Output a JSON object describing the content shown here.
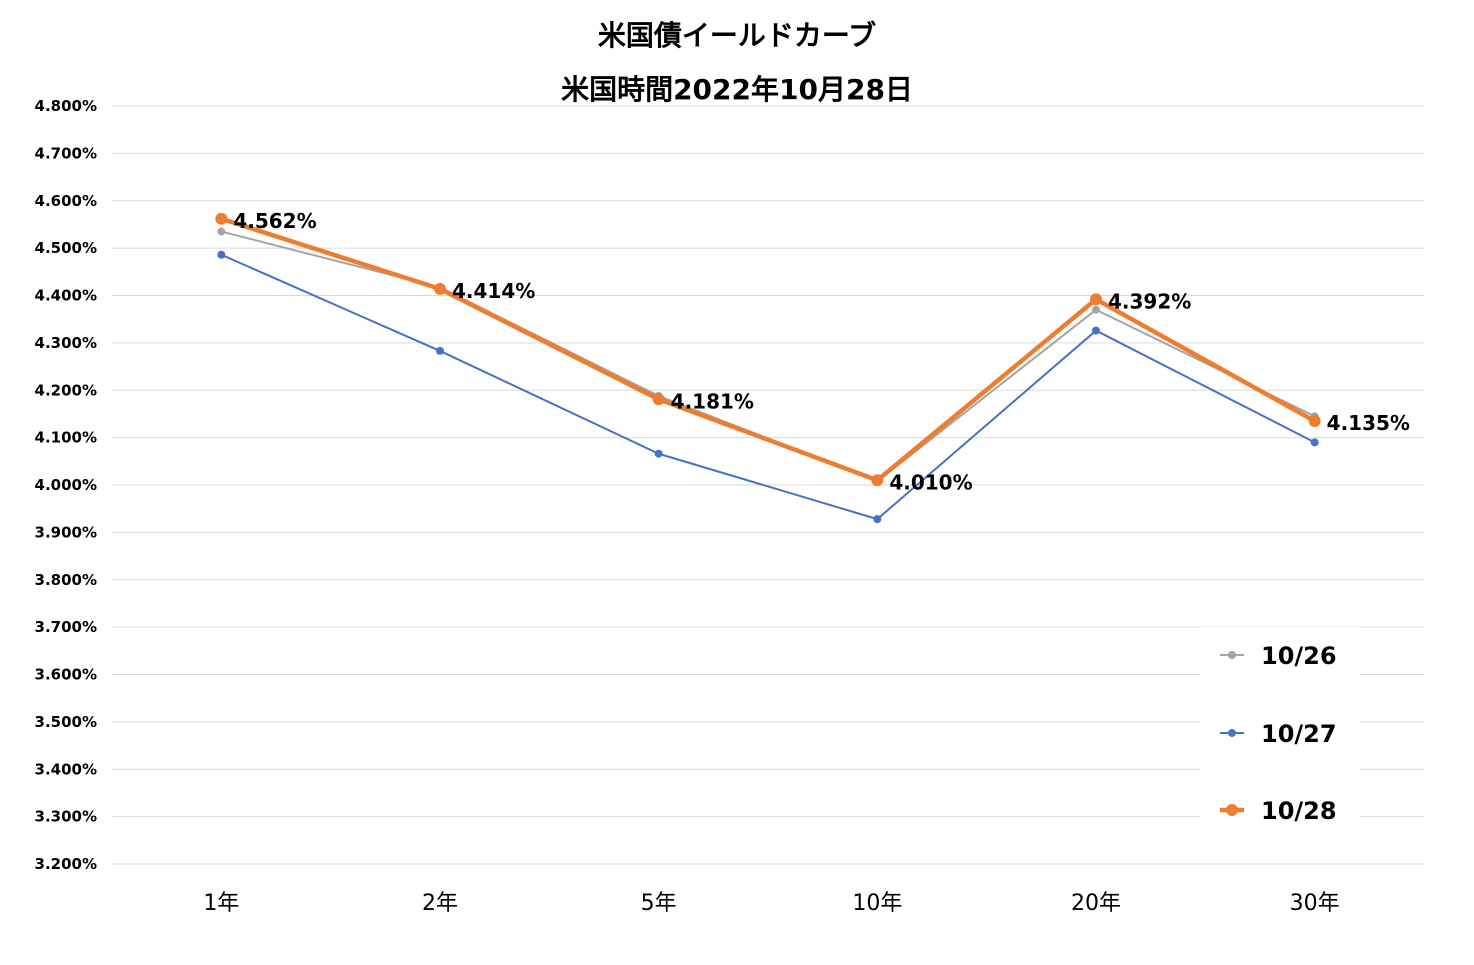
{
  "chart_data": {
    "type": "line",
    "title": "米国債イールドカーブ",
    "subtitle": "米国時間2022年10月28日",
    "categories": [
      "1年",
      "2年",
      "5年",
      "10年",
      "20年",
      "30年"
    ],
    "yticks": [
      "3.200%",
      "3.300%",
      "3.400%",
      "3.500%",
      "3.600%",
      "3.700%",
      "3.800%",
      "3.900%",
      "4.000%",
      "4.100%",
      "4.200%",
      "4.300%",
      "4.400%",
      "4.500%",
      "4.600%",
      "4.700%",
      "4.800%"
    ],
    "ylim": [
      3.2,
      4.8
    ],
    "grid": true,
    "legend_position": "bottom-right",
    "series": [
      {
        "name": "10/26",
        "color": "#A5A5A5",
        "values": [
          4.535,
          4.417,
          4.188,
          4.008,
          4.37,
          4.145
        ]
      },
      {
        "name": "10/27",
        "color": "#4472C4",
        "values": [
          4.486,
          4.283,
          4.066,
          3.928,
          4.326,
          4.09
        ]
      },
      {
        "name": "10/28",
        "color": "#ED7D31",
        "values": [
          4.562,
          4.414,
          4.181,
          4.01,
          4.392,
          4.135
        ],
        "data_labels": [
          "4.562%",
          "4.414%",
          "4.181%",
          "4.010%",
          "4.392%",
          "4.135%"
        ]
      }
    ]
  }
}
